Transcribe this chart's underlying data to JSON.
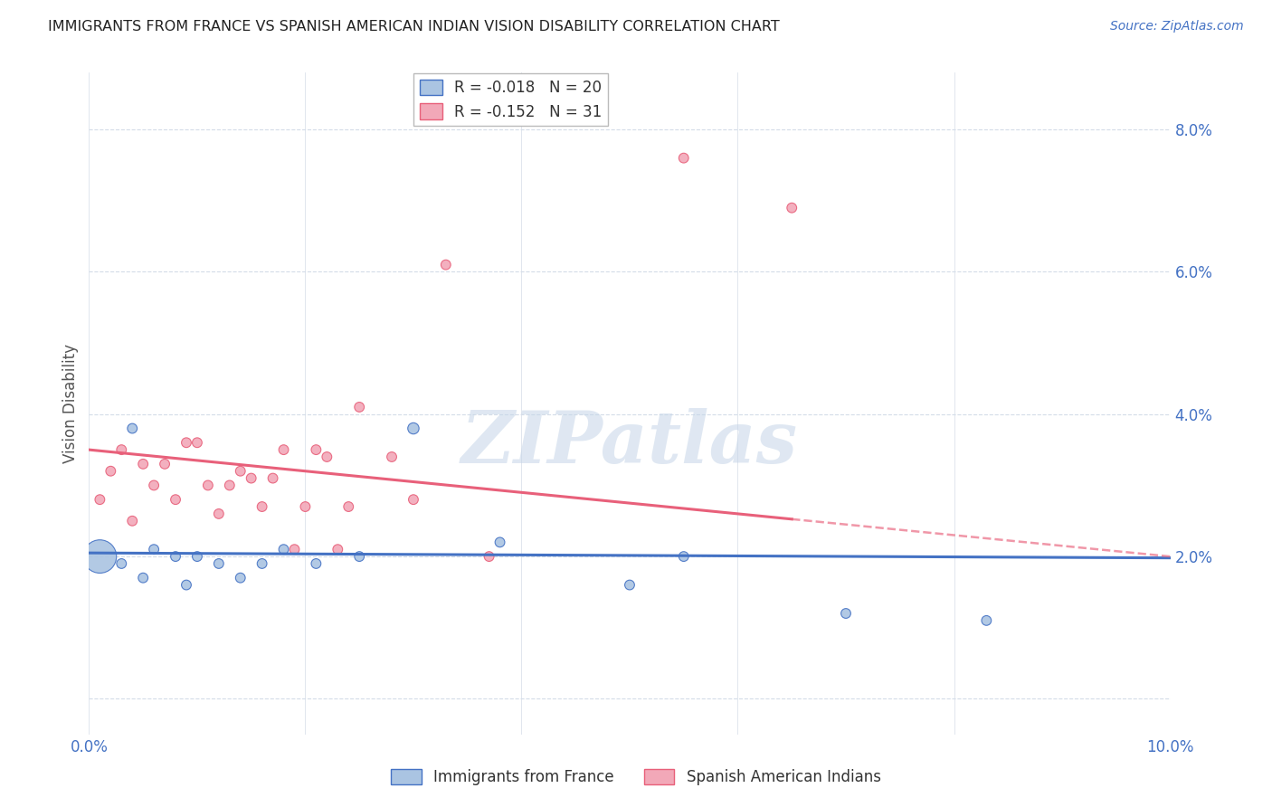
{
  "title": "IMMIGRANTS FROM FRANCE VS SPANISH AMERICAN INDIAN VISION DISABILITY CORRELATION CHART",
  "source": "Source: ZipAtlas.com",
  "ylabel": "Vision Disability",
  "yticks": [
    0.0,
    0.02,
    0.04,
    0.06,
    0.08
  ],
  "ytick_labels": [
    "",
    "2.0%",
    "4.0%",
    "6.0%",
    "8.0%"
  ],
  "xlim": [
    0.0,
    0.1
  ],
  "ylim": [
    -0.005,
    0.088
  ],
  "blue_R": "-0.018",
  "blue_N": "20",
  "pink_R": "-0.152",
  "pink_N": "31",
  "blue_color": "#aac4e2",
  "pink_color": "#f2a8b8",
  "blue_line_color": "#4472c4",
  "pink_line_color": "#e8607a",
  "legend_label_blue": "Immigrants from France",
  "legend_label_pink": "Spanish American Indians",
  "blue_x": [
    0.001,
    0.003,
    0.004,
    0.005,
    0.006,
    0.008,
    0.009,
    0.01,
    0.012,
    0.014,
    0.016,
    0.018,
    0.021,
    0.025,
    0.03,
    0.038,
    0.05,
    0.055,
    0.07,
    0.083
  ],
  "blue_y": [
    0.02,
    0.019,
    0.038,
    0.017,
    0.021,
    0.02,
    0.016,
    0.02,
    0.019,
    0.017,
    0.019,
    0.021,
    0.019,
    0.02,
    0.038,
    0.022,
    0.016,
    0.02,
    0.012,
    0.011
  ],
  "blue_size": [
    700,
    60,
    60,
    60,
    60,
    60,
    60,
    60,
    60,
    60,
    60,
    60,
    60,
    60,
    80,
    60,
    60,
    60,
    60,
    60
  ],
  "pink_x": [
    0.001,
    0.002,
    0.003,
    0.004,
    0.005,
    0.006,
    0.007,
    0.008,
    0.009,
    0.01,
    0.011,
    0.012,
    0.013,
    0.014,
    0.015,
    0.016,
    0.017,
    0.018,
    0.019,
    0.02,
    0.021,
    0.022,
    0.023,
    0.024,
    0.025,
    0.028,
    0.03,
    0.033,
    0.037,
    0.055,
    0.065
  ],
  "pink_y": [
    0.028,
    0.032,
    0.035,
    0.025,
    0.033,
    0.03,
    0.033,
    0.028,
    0.036,
    0.036,
    0.03,
    0.026,
    0.03,
    0.032,
    0.031,
    0.027,
    0.031,
    0.035,
    0.021,
    0.027,
    0.035,
    0.034,
    0.021,
    0.027,
    0.041,
    0.034,
    0.028,
    0.061,
    0.02,
    0.076,
    0.069
  ],
  "pink_size": [
    60,
    60,
    60,
    60,
    60,
    60,
    60,
    60,
    60,
    60,
    60,
    60,
    60,
    60,
    60,
    60,
    60,
    60,
    60,
    60,
    60,
    60,
    60,
    60,
    60,
    60,
    60,
    60,
    60,
    60,
    60
  ],
  "watermark_text": "ZIPatlas",
  "background_color": "#ffffff",
  "grid_color": "#d4dce8"
}
